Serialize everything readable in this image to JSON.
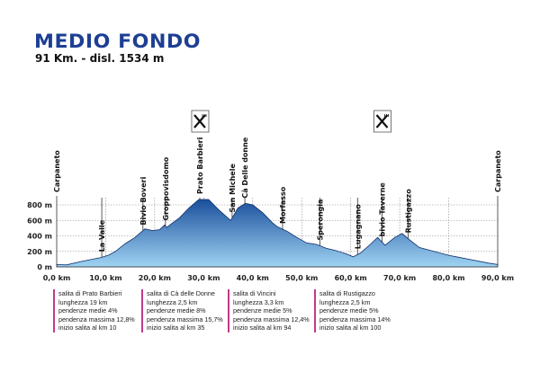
{
  "title": "MEDIO FONDO",
  "subtitle": "91 Km. - disl. 1534 m",
  "chart_data": {
    "type": "area",
    "xlabel": "",
    "ylabel": "",
    "xlim": [
      0,
      90
    ],
    "ylim": [
      0,
      800
    ],
    "x_ticks": [
      "0,0 km",
      "10,0 km",
      "20,0 km",
      "30,0 km",
      "40,0 km",
      "50,0 km",
      "60,0 km",
      "70,0 km",
      "80,0 km",
      "90,0 km"
    ],
    "y_ticks": [
      "0 m",
      "200 m",
      "400 m",
      "600 m",
      "800 m"
    ],
    "grid": true,
    "colors": {
      "fill_top": "#1a4f9c",
      "fill_bottom": "#9fd3f2",
      "line": "#0d2f6b"
    },
    "profile": [
      [
        0,
        30
      ],
      [
        2,
        25
      ],
      [
        5,
        70
      ],
      [
        9,
        120
      ],
      [
        10.5,
        150
      ],
      [
        12,
        200
      ],
      [
        14,
        300
      ],
      [
        16,
        380
      ],
      [
        18,
        490
      ],
      [
        19.5,
        470
      ],
      [
        21,
        480
      ],
      [
        22,
        540
      ],
      [
        22.5,
        510
      ],
      [
        23.5,
        560
      ],
      [
        25,
        630
      ],
      [
        27,
        760
      ],
      [
        29,
        870
      ],
      [
        31,
        870
      ],
      [
        33,
        740
      ],
      [
        35.5,
        600
      ],
      [
        37,
        760
      ],
      [
        38.5,
        820
      ],
      [
        40,
        800
      ],
      [
        42,
        700
      ],
      [
        44,
        570
      ],
      [
        45,
        520
      ],
      [
        47,
        460
      ],
      [
        49,
        380
      ],
      [
        51,
        310
      ],
      [
        53,
        290
      ],
      [
        55,
        240
      ],
      [
        57,
        210
      ],
      [
        59,
        170
      ],
      [
        60.5,
        130
      ],
      [
        62,
        180
      ],
      [
        64,
        290
      ],
      [
        65.5,
        380
      ],
      [
        67,
        280
      ],
      [
        69,
        380
      ],
      [
        70.5,
        430
      ],
      [
        72,
        350
      ],
      [
        74,
        250
      ],
      [
        77,
        200
      ],
      [
        80,
        150
      ],
      [
        84,
        100
      ],
      [
        88,
        50
      ],
      [
        90,
        30
      ]
    ],
    "waypoints": [
      {
        "name": "Carpaneto",
        "km": 0
      },
      {
        "name": "La Valle",
        "km": 9.2
      },
      {
        "name": "Bivio Boveri",
        "km": 17.6
      },
      {
        "name": "Groppovisdomo",
        "km": 22.2
      },
      {
        "name": "Prato Barbieri",
        "km": 29.2,
        "food": true
      },
      {
        "name": "San Michele",
        "km": 35.8
      },
      {
        "name": "Cà Delle donne",
        "km": 38.4
      },
      {
        "name": "Morfasso",
        "km": 46.1
      },
      {
        "name": "Sperongia",
        "km": 53.7
      },
      {
        "name": "Lugagnano",
        "km": 61.4
      },
      {
        "name": "bivio Taverne",
        "km": 66.4,
        "food": true
      },
      {
        "name": "Rustigazzo",
        "km": 71.7
      },
      {
        "name": "Carpaneto",
        "km": 90
      }
    ],
    "food_icon": "fork-knife-icon"
  },
  "climbs": [
    {
      "lines": [
        "salita di Prato Barbieri",
        "lunghezza 19 km",
        "pendenze medie 4%",
        "pendenza massima 12,8%",
        "inizio salita al km 10"
      ]
    },
    {
      "lines": [
        "salita di Cà delle Donne",
        "lunghezza 2,5 km",
        "pendenze medie 8%",
        "pendenza massima 15,7%",
        "inizio salita al km 35"
      ]
    },
    {
      "lines": [
        "salita di Vincini",
        "lunghezza 3,3 km",
        "pendenze medie 5%",
        "pendenza massima 12,4%",
        "inizio salita al km 94"
      ]
    },
    {
      "lines": [
        "salita di Rustigazzo",
        "lunghezza 2,5 km",
        "pendenze medie 5%",
        "pendenza massima 14%",
        "inizio salita al km 100"
      ]
    }
  ]
}
